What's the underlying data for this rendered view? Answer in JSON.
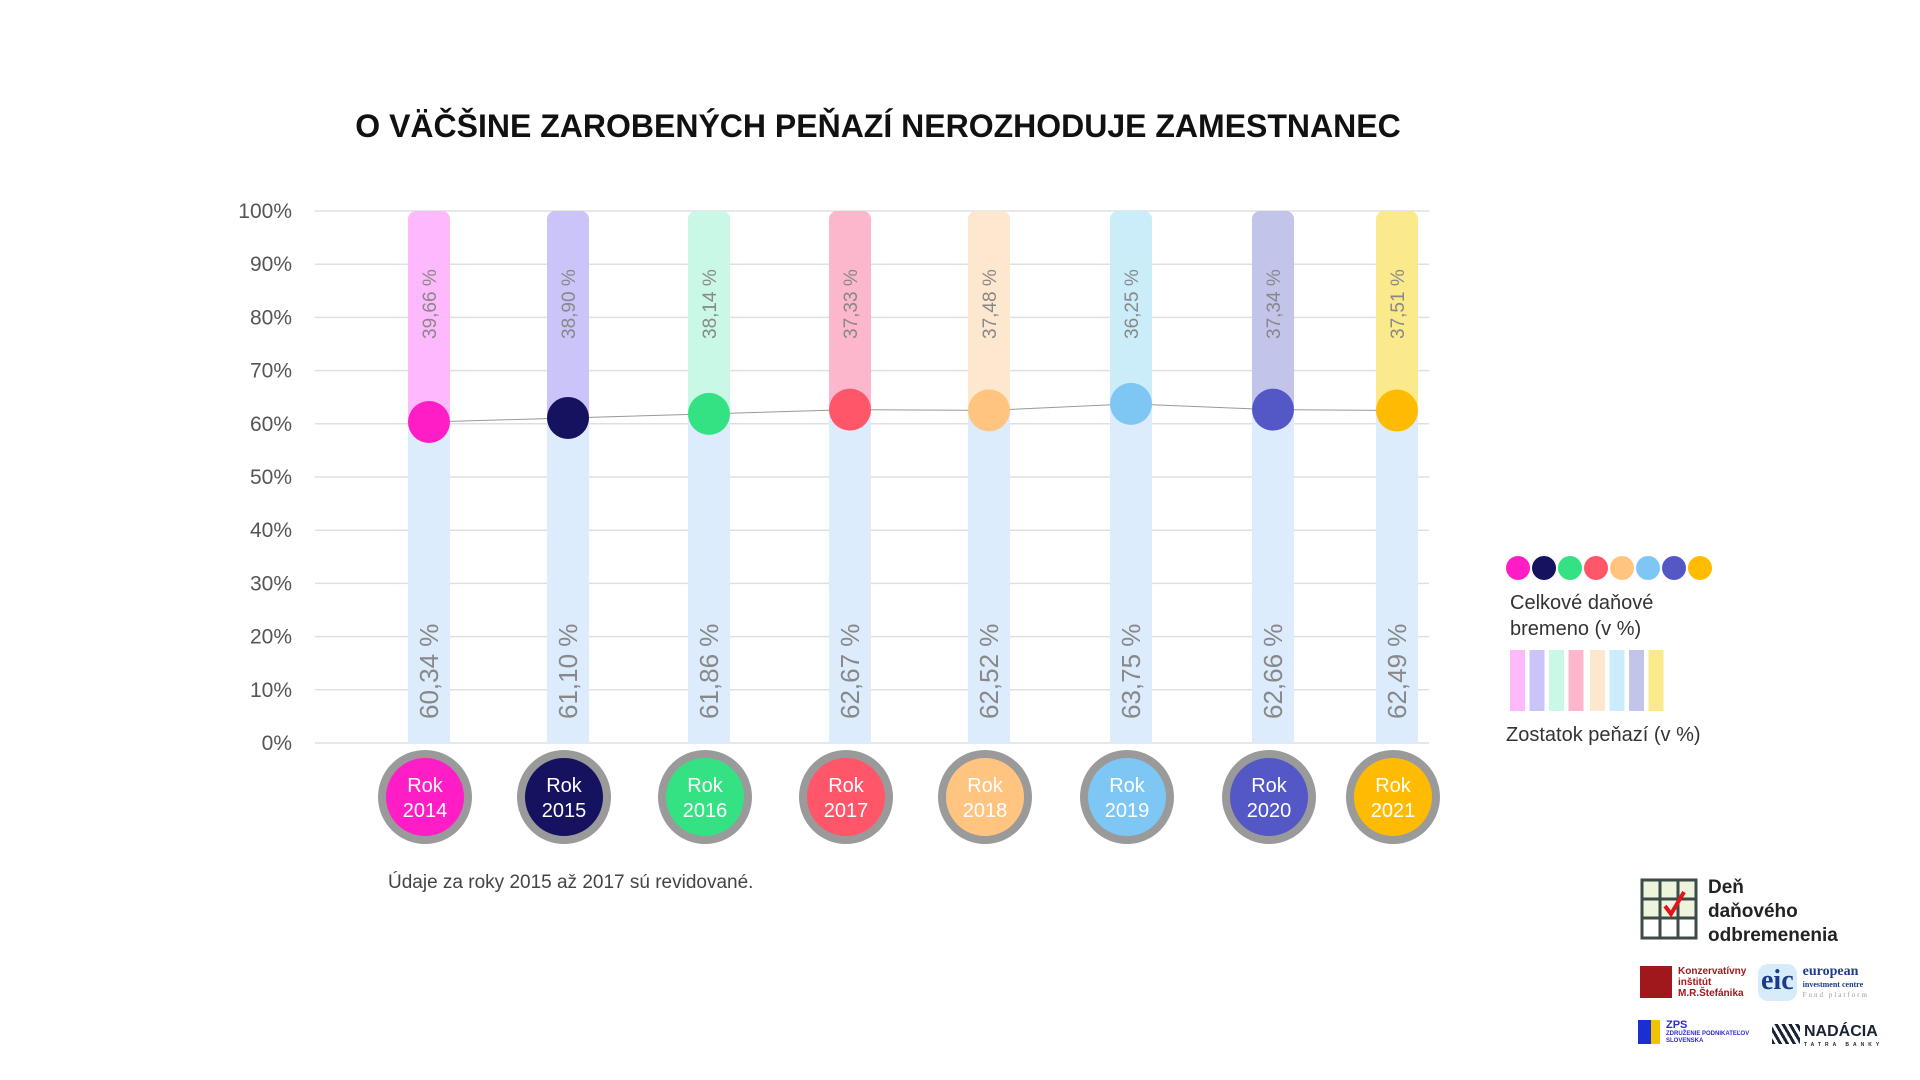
{
  "title": "O VÄČŠINE ZAROBENÝCH PEŇAZÍ NEROZHODUJE ZAMESTNANEC",
  "footnote": "Údaje za roky 2015 až 2017 sú revidované.",
  "chart_data": {
    "type": "bar",
    "stacked": true,
    "title": "O VÄČŠINE ZAROBENÝCH PEŇAZÍ NEROZHODUJE ZAMESTNANEC",
    "categories": [
      "Rok 2014",
      "Rok 2015",
      "Rok 2016",
      "Rok 2017",
      "Rok 2018",
      "Rok 2019",
      "Rok 2020",
      "Rok 2021"
    ],
    "category_lines": [
      [
        "Rok",
        "2014"
      ],
      [
        "Rok",
        "2015"
      ],
      [
        "Rok",
        "2016"
      ],
      [
        "Rok",
        "2017"
      ],
      [
        "Rok",
        "2018"
      ],
      [
        "Rok",
        "2019"
      ],
      [
        "Rok",
        "2020"
      ],
      [
        "Rok",
        "2021"
      ]
    ],
    "series": [
      {
        "name": "Celkové daňové bremeno (v %)",
        "values": [
          60.34,
          61.1,
          61.86,
          62.67,
          62.52,
          63.75,
          62.66,
          62.49
        ],
        "labels": [
          "60,34 %",
          "61,10 %",
          "61,86 %",
          "62,67 %",
          "62,52 %",
          "63,75 %",
          "62,66 %",
          "62,49 %"
        ]
      },
      {
        "name": "Zostatok peňazí (v %)",
        "values": [
          39.66,
          38.9,
          38.14,
          37.33,
          37.48,
          36.25,
          37.34,
          37.51
        ],
        "labels": [
          "39,66 %",
          "38,90 %",
          "38,14 %",
          "37,33 %",
          "37,48 %",
          "36,25 %",
          "37,34 %",
          "37,51 %"
        ]
      }
    ],
    "yticks": [
      "0%",
      "10%",
      "20%",
      "30%",
      "40%",
      "50%",
      "60%",
      "70%",
      "80%",
      "90%",
      "100%"
    ],
    "ylim": [
      0,
      100
    ],
    "grid": true,
    "legend_position": "right",
    "colors": {
      "burden_bar": "#ddecfd",
      "dots": [
        "#ff1ec6",
        "#15125f",
        "#35e283",
        "#ff5669",
        "#ffc480",
        "#7ec6f3",
        "#5457c6",
        "#ffbb02"
      ],
      "pastels": [
        "#fdb9fb",
        "#cac4f8",
        "#c9f8e6",
        "#fdb7cd",
        "#fde7ce",
        "#caedf9",
        "#c2c4ea",
        "#fbea8c"
      ]
    }
  },
  "legend": {
    "burden_label_1": "Celkové daňové",
    "burden_label_2": "bremeno (v %)",
    "remaining_label": "Zostatok peňazí (v %)"
  },
  "logos": {
    "main_1": "Deň",
    "main_2": "daňového",
    "main_3": "odbremenenia",
    "kimrs": [
      "Konzervatívny",
      "inštitút",
      "M.R.Štefánika"
    ],
    "eic": [
      "european",
      "investment centre",
      "Fund platform"
    ],
    "zps": [
      "ZPS",
      "ZDRUŽENIE PODNIKATEĽOV",
      "SLOVENSKA"
    ],
    "nadacia": [
      "NADÁCIA",
      "TATRA BANKY"
    ]
  }
}
